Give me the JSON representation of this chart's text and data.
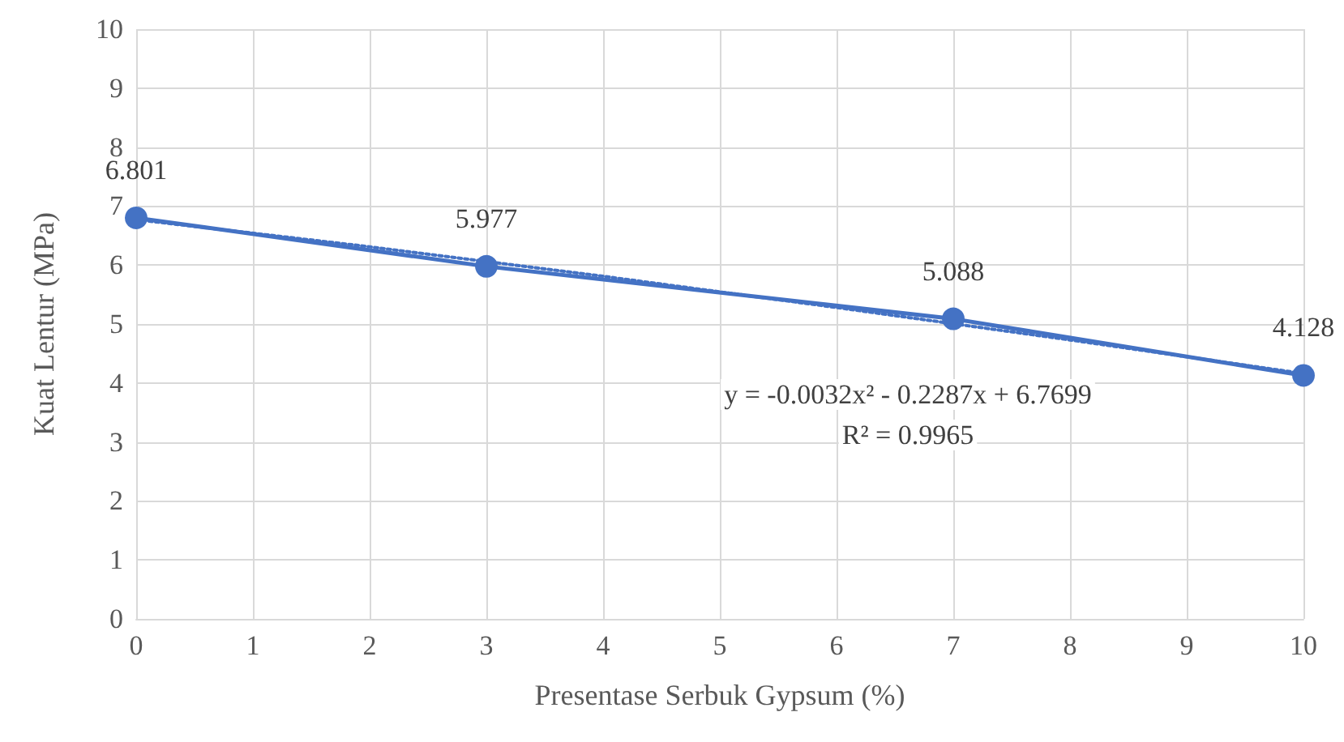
{
  "chart_data": {
    "type": "line",
    "xlabel": "Presentase Serbuk Gypsum (%)",
    "ylabel": "Kuat Lentur (MPa)",
    "x": [
      0,
      3,
      7,
      10
    ],
    "series": [
      {
        "color": "#4472c4",
        "values": [
          6.801,
          5.977,
          5.088,
          4.128
        ],
        "value_labels": [
          "6.801",
          "5.977",
          "5.088",
          "4.128"
        ],
        "marker": "circle",
        "line_style": "solid"
      },
      {
        "color": "#4472c4",
        "x": [
          0,
          2,
          4,
          6,
          8,
          10
        ],
        "values": [
          6.77,
          6.31,
          5.81,
          5.28,
          4.73,
          4.16
        ],
        "marker": "none",
        "line_style": "dotted"
      }
    ],
    "annotations": [
      "y = -0.0032x² - 0.2287x + 6.7699",
      "R² = 0.9965"
    ],
    "xlim": [
      0,
      10
    ],
    "xticks": [
      0,
      1,
      2,
      3,
      4,
      5,
      6,
      7,
      8,
      9,
      10
    ],
    "ylim": [
      0,
      10
    ],
    "yticks": [
      0,
      1,
      2,
      3,
      4,
      5,
      6,
      7,
      8,
      9,
      10
    ],
    "grid": true
  }
}
